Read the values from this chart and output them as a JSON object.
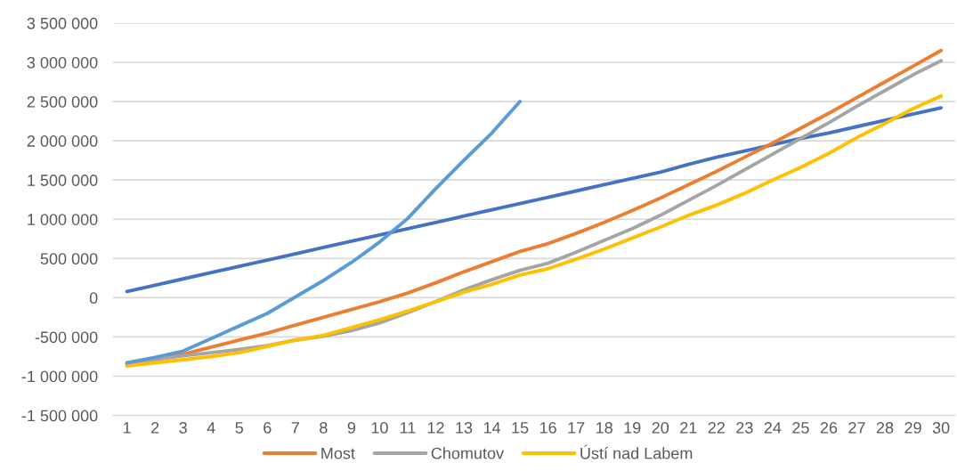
{
  "chart_data": {
    "type": "line",
    "categories": [
      "1",
      "2",
      "3",
      "4",
      "5",
      "6",
      "7",
      "8",
      "9",
      "10",
      "11",
      "12",
      "13",
      "14",
      "15",
      "16",
      "17",
      "18",
      "19",
      "20",
      "21",
      "22",
      "23",
      "24",
      "25",
      "26",
      "27",
      "28",
      "29",
      "30"
    ],
    "series": [
      {
        "color": "#4472c4",
        "values": [
          80000,
          160000,
          240000,
          320000,
          400000,
          480000,
          560000,
          640000,
          720000,
          800000,
          880000,
          960000,
          1040000,
          1120000,
          1200000,
          1280000,
          1360000,
          1440000,
          1520000,
          1600000,
          1700000,
          1790000,
          1870000,
          1950000,
          2030000,
          2100000,
          2180000,
          2260000,
          2340000,
          2420000
        ]
      },
      {
        "name": "Most",
        "color": "#ed7d31",
        "values": [
          -850000,
          -790000,
          -720000,
          -630000,
          -540000,
          -450000,
          -350000,
          -250000,
          -150000,
          -50000,
          60000,
          190000,
          330000,
          460000,
          590000,
          690000,
          820000,
          960000,
          1110000,
          1270000,
          1440000,
          1610000,
          1790000,
          1970000,
          2160000,
          2350000,
          2550000,
          2750000,
          2950000,
          3150000
        ]
      },
      {
        "name": "Chomutov",
        "color": "#a5a5a5",
        "values": [
          -850000,
          -790000,
          -740000,
          -700000,
          -660000,
          -610000,
          -540000,
          -490000,
          -420000,
          -320000,
          -190000,
          -50000,
          100000,
          230000,
          350000,
          440000,
          580000,
          730000,
          880000,
          1050000,
          1240000,
          1430000,
          1630000,
          1830000,
          2030000,
          2230000,
          2440000,
          2640000,
          2840000,
          3020000
        ]
      },
      {
        "name": "Ústí nad Labem",
        "color": "#ffc000",
        "values": [
          -870000,
          -830000,
          -790000,
          -750000,
          -700000,
          -620000,
          -540000,
          -480000,
          -380000,
          -280000,
          -170000,
          -50000,
          70000,
          170000,
          290000,
          370000,
          490000,
          620000,
          760000,
          900000,
          1050000,
          1180000,
          1330000,
          1500000,
          1660000,
          1840000,
          2040000,
          2220000,
          2410000,
          2570000
        ]
      },
      {
        "color": "#5b9bd5",
        "values": [
          -830000,
          -760000,
          -680000,
          -520000,
          -360000,
          -200000,
          10000,
          220000,
          450000,
          710000,
          1010000,
          1390000,
          1750000,
          2100000,
          2500000,
          null,
          null,
          null,
          null,
          null,
          null,
          null,
          null,
          null,
          null,
          null,
          null,
          null,
          null,
          null
        ]
      }
    ],
    "ylim": [
      -1500000,
      3500000
    ],
    "yticks": [
      {
        "value": -1500000,
        "label": "-1 500 000"
      },
      {
        "value": -1000000,
        "label": "-1 000 000"
      },
      {
        "value": -500000,
        "label": "-500 000"
      },
      0,
      {
        "value": 500000,
        "label": "500 000"
      },
      {
        "value": 1000000,
        "label": "1 000 000"
      },
      {
        "value": 1500000,
        "label": "1 500 000"
      },
      {
        "value": 2000000,
        "label": "2 000 000"
      },
      {
        "value": 2500000,
        "label": "2 500 000"
      },
      {
        "value": 3000000,
        "label": "3 000 000"
      },
      {
        "value": 3500000,
        "label": "3 500 000"
      }
    ],
    "grid": "y",
    "legend": "bottom",
    "marker": "none",
    "line_style": "solid"
  }
}
